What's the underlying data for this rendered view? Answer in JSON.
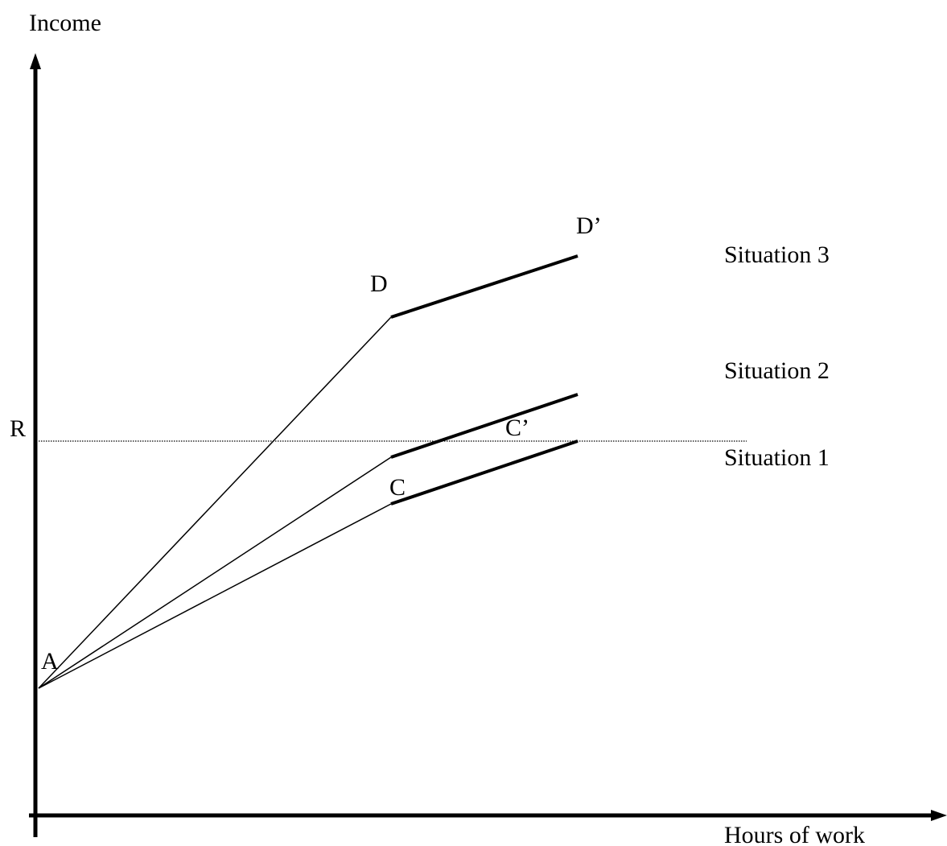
{
  "axes": {
    "y_label": "Income",
    "x_label": "Hours of work"
  },
  "reference_line": {
    "label": "R"
  },
  "points": {
    "a": "A",
    "c": "C",
    "c_prime": "C’",
    "d": "D",
    "d_prime": "D’"
  },
  "situations": {
    "s1": "Situation 1",
    "s2": "Situation 2",
    "s3": "Situation 3"
  }
}
